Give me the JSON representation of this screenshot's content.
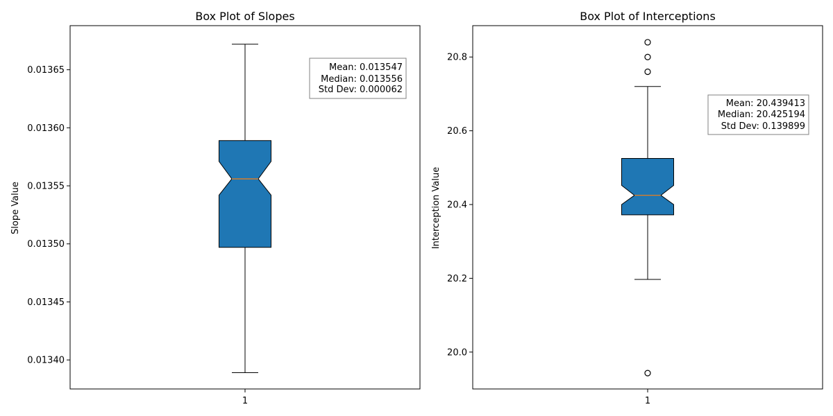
{
  "chart_data": [
    {
      "type": "boxplot",
      "title": "Box Plot of Slopes",
      "xlabel": "",
      "ylabel": "Slope Value",
      "categories": [
        "1"
      ],
      "ylim": [
        0.013375,
        0.013688
      ],
      "yticks": [
        0.0134,
        0.01345,
        0.0135,
        0.01355,
        0.0136,
        0.01365
      ],
      "ytick_labels": [
        "0.01340",
        "0.01345",
        "0.01350",
        "0.01355",
        "0.01360",
        "0.01365"
      ],
      "notched": true,
      "box_color": "#1f77b4",
      "median_color": "#ff7f0e",
      "box": {
        "whisker_low": 0.013389,
        "q1": 0.013497,
        "median": 0.013556,
        "q3": 0.013589,
        "whisker_high": 0.013672,
        "notch_low": 0.013542,
        "notch_high": 0.013571,
        "outliers": []
      },
      "stats": {
        "mean": "Mean: 0.013547",
        "median": "Median: 0.013556",
        "std": "Std Dev: 0.000062"
      },
      "legend_position": "top-right"
    },
    {
      "type": "boxplot",
      "title": "Box Plot of Interceptions",
      "xlabel": "",
      "ylabel": "Interception Value",
      "categories": [
        "1"
      ],
      "ylim": [
        19.9,
        20.885
      ],
      "yticks": [
        20.0,
        20.2,
        20.4,
        20.6,
        20.8
      ],
      "ytick_labels": [
        "20.0",
        "20.2",
        "20.4",
        "20.6",
        "20.8"
      ],
      "notched": true,
      "box_color": "#1f77b4",
      "median_color": "#ff7f0e",
      "box": {
        "whisker_low": 20.197,
        "q1": 20.372,
        "median": 20.425,
        "q3": 20.525,
        "whisker_high": 20.72,
        "notch_low": 20.4,
        "notch_high": 20.452,
        "outliers": [
          20.84,
          20.8,
          20.76,
          19.943
        ]
      },
      "stats": {
        "mean": "Mean: 20.439413",
        "median": "Median: 20.425194",
        "std": "Std Dev: 0.139899"
      },
      "legend_position": "top-right"
    }
  ]
}
